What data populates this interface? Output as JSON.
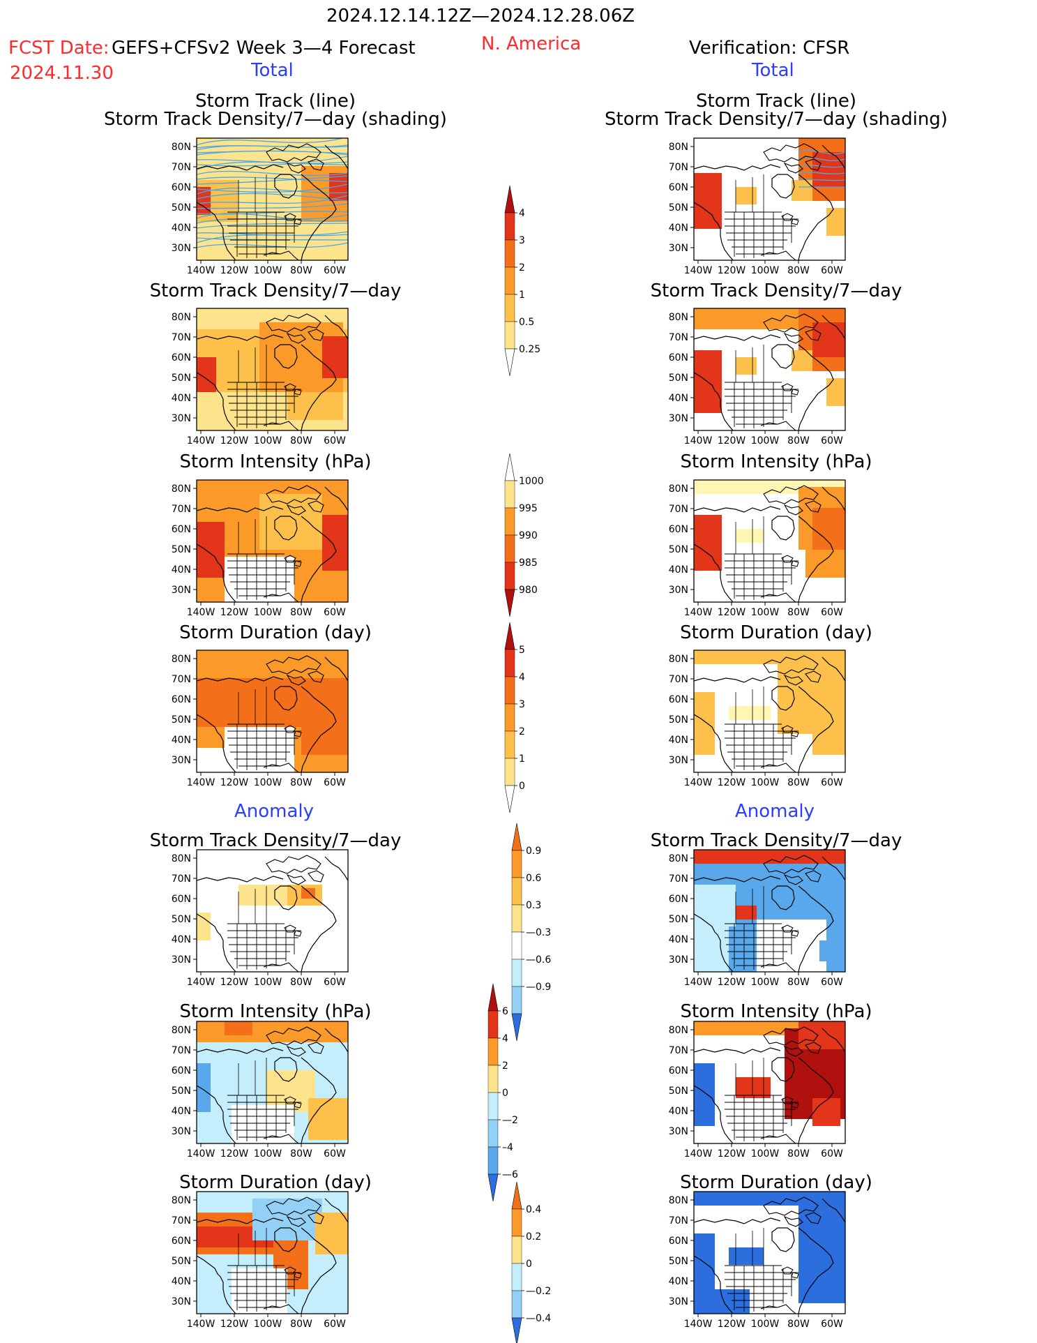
{
  "header": {
    "date_range": "2024.12.14.12Z—2024.12.28.06Z",
    "fcst_label": "FCST Date:",
    "fcst_model": "GEFS+CFSv2 Week 3—4 Forecast",
    "fcst_date": "2024.11.30",
    "region": "N. America",
    "verification": "Verification: CFSR"
  },
  "sections": {
    "total": "Total",
    "anomaly": "Anomaly"
  },
  "panel_titles": {
    "track_line": "Storm Track (line)",
    "track_shading": "Storm Track Density/7—day (shading)",
    "density": "Storm Track Density/7—day",
    "intensity": "Storm Intensity (hPa)",
    "duration": "Storm Duration (day)"
  },
  "axes": {
    "lon_ticks": [
      "140W",
      "120W",
      "100W",
      "80W",
      "60W"
    ],
    "lat_ticks": [
      "80N",
      "70N",
      "60N",
      "50N",
      "40N",
      "30N"
    ]
  },
  "colorbars": {
    "density_total": [
      "4",
      "3",
      "2",
      "1",
      "0.5",
      "0.25"
    ],
    "intensity_total": [
      "1000",
      "995",
      "990",
      "985",
      "980"
    ],
    "duration_total": [
      "5",
      "4",
      "3",
      "2",
      "1",
      "0"
    ],
    "density_anom": [
      "0.9",
      "0.6",
      "0.3",
      "—0.3",
      "—0.6",
      "—0.9"
    ],
    "intensity_anom": [
      "6",
      "4",
      "2",
      "0",
      "—2",
      "–4",
      "—6"
    ],
    "duration_anom": [
      "0.4",
      "0.2",
      "0",
      "—0.2",
      "—0.4"
    ]
  },
  "colors": {
    "y1": "#fff6b4",
    "y2": "#fde48c",
    "o1": "#fdc04a",
    "o2": "#fb9a28",
    "o3": "#f46f1a",
    "r1": "#e2351a",
    "r2": "#b0100e",
    "b1": "#c4eefc",
    "b2": "#92d0f6",
    "b3": "#5aa8ec",
    "b4": "#2c6ede",
    "track": "#4aa8e8"
  }
}
